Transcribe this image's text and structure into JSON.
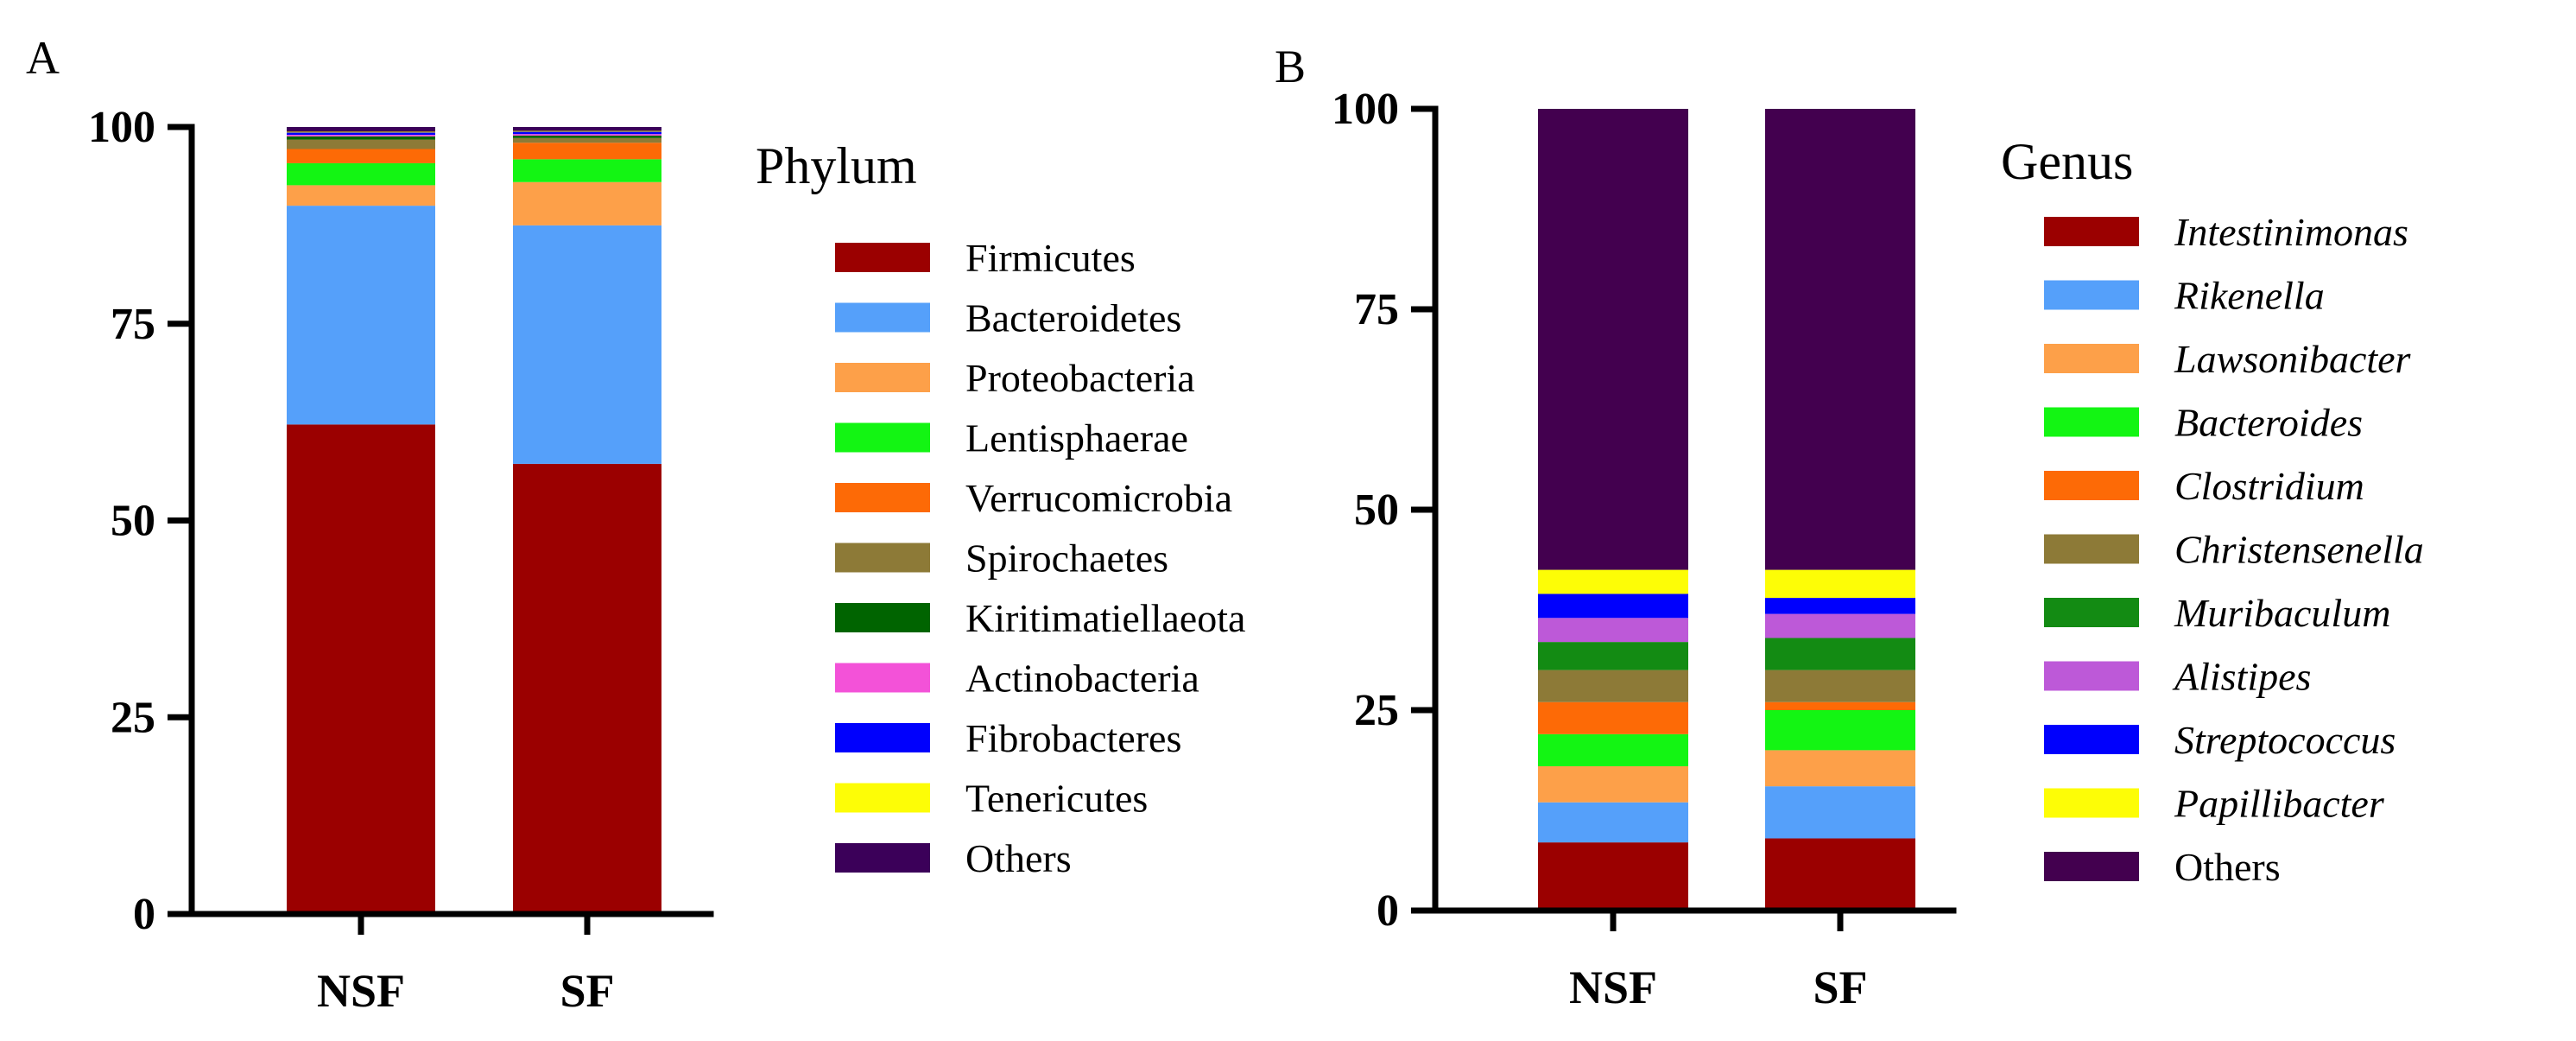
{
  "chart_data": [
    {
      "type": "bar",
      "stacked": true,
      "panel": "A",
      "legend_title": "Phylum",
      "categories": [
        "NSF",
        "SF"
      ],
      "ylim": [
        0,
        100
      ],
      "yticks": [
        0,
        25,
        50,
        75,
        100
      ],
      "xlabel": "",
      "ylabel": "",
      "grid": false,
      "legend_position": "right",
      "series": [
        {
          "name": "Firmicutes",
          "color": "#9b0000",
          "values": [
            62.2,
            57.2
          ]
        },
        {
          "name": "Bacteroidetes",
          "color": "#55a0fa",
          "values": [
            27.8,
            30.3
          ]
        },
        {
          "name": "Proteobacteria",
          "color": "#fda049",
          "values": [
            2.6,
            5.5
          ]
        },
        {
          "name": "Lentisphaerae",
          "color": "#13f513",
          "values": [
            2.8,
            2.9
          ]
        },
        {
          "name": "Verrucomicrobia",
          "color": "#fd6a06",
          "values": [
            1.8,
            2.1
          ]
        },
        {
          "name": "Spirochaetes",
          "color": "#8d7a37",
          "values": [
            1.2,
            0.6
          ]
        },
        {
          "name": "Kiritimatiellaeota",
          "color": "#006400",
          "values": [
            0.4,
            0.3
          ]
        },
        {
          "name": "Actinobacteria",
          "color": "#f352d8",
          "values": [
            0.2,
            0.2
          ]
        },
        {
          "name": "Fibrobacteres",
          "color": "#0000fd",
          "values": [
            0.3,
            0.3
          ]
        },
        {
          "name": "Tenericutes",
          "color": "#fdfd06",
          "values": [
            0.1,
            0.1
          ]
        },
        {
          "name": "Others",
          "color": "#3b0059",
          "values": [
            0.6,
            0.5
          ]
        }
      ]
    },
    {
      "type": "bar",
      "stacked": true,
      "panel": "B",
      "legend_title": "Genus",
      "categories": [
        "NSF",
        "SF"
      ],
      "ylim": [
        0,
        100
      ],
      "yticks": [
        0,
        25,
        50,
        75,
        100
      ],
      "xlabel": "",
      "ylabel": "",
      "grid": false,
      "legend_position": "right",
      "series": [
        {
          "name": "Intestinimonas",
          "color": "#9b0000",
          "italic": true,
          "values": [
            8.5,
            9.0
          ]
        },
        {
          "name": "Rikenella",
          "color": "#55a0fa",
          "italic": true,
          "values": [
            5.0,
            6.5
          ]
        },
        {
          "name": "Lawsonibacter",
          "color": "#fda049",
          "italic": true,
          "values": [
            4.5,
            4.5
          ]
        },
        {
          "name": "Bacteroides",
          "color": "#13f513",
          "italic": true,
          "values": [
            4.0,
            5.0
          ]
        },
        {
          "name": "Clostridium",
          "color": "#fd6a06",
          "italic": true,
          "values": [
            4.0,
            1.0
          ]
        },
        {
          "name": "Christensenella",
          "color": "#8d7a37",
          "italic": true,
          "values": [
            4.0,
            4.0
          ]
        },
        {
          "name": "Muribaculum",
          "color": "#138b13",
          "italic": true,
          "values": [
            3.5,
            4.0
          ]
        },
        {
          "name": "Alistipes",
          "color": "#bd59d8",
          "italic": true,
          "values": [
            3.0,
            3.0
          ]
        },
        {
          "name": "Streptococcus",
          "color": "#0000fd",
          "italic": true,
          "values": [
            3.0,
            2.0
          ]
        },
        {
          "name": "Papillibacter",
          "color": "#fdfd06",
          "italic": true,
          "values": [
            3.0,
            3.5
          ]
        },
        {
          "name": "Others",
          "color": "#43004f",
          "italic": false,
          "values": [
            57.5,
            57.5
          ]
        }
      ]
    }
  ]
}
